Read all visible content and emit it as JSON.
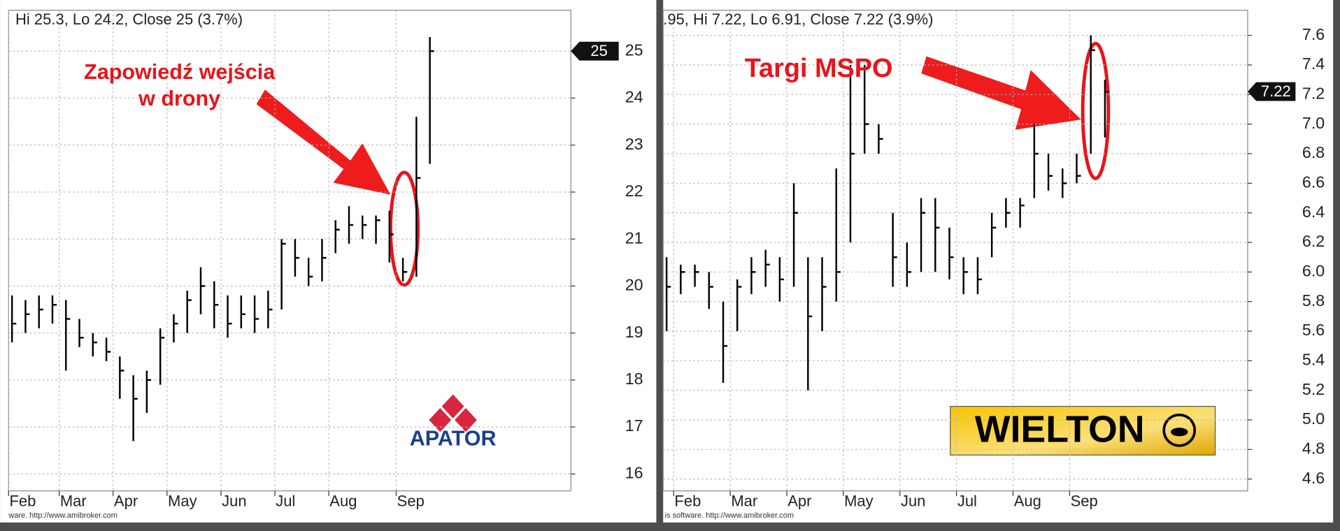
{
  "chart_data": [
    {
      "type": "ohlc",
      "header": "Hi 25.3, Lo 24.2, Close 25 (3.7%)",
      "footer": "ware. http://www.amibroker.com",
      "annotation": [
        "Zapowiedź wejścia",
        "w drony"
      ],
      "logo": "APATOR",
      "ylim": [
        15.64,
        25.87
      ],
      "yticks": [
        16,
        17,
        18,
        19,
        20,
        21,
        22,
        23,
        24,
        25
      ],
      "months": [
        {
          "name": "Feb",
          "close": [
            19.2,
            19.4,
            19.5,
            19.6
          ],
          "high": [
            19.8,
            19.7,
            19.8,
            19.8
          ],
          "low": [
            18.8,
            19.0,
            19.1,
            19.2
          ]
        },
        {
          "name": "Mar",
          "close": [
            19.3,
            18.9,
            18.8,
            18.6
          ],
          "high": [
            19.7,
            19.3,
            19.0,
            18.9
          ],
          "low": [
            18.2,
            18.7,
            18.5,
            18.4
          ]
        },
        {
          "name": "Apr",
          "close": [
            18.2,
            17.6,
            18.0,
            18.9
          ],
          "high": [
            18.5,
            18.1,
            18.2,
            19.1
          ],
          "low": [
            17.6,
            16.7,
            17.3,
            17.9
          ]
        },
        {
          "name": "May",
          "close": [
            19.2,
            19.7,
            20.0,
            19.6
          ],
          "high": [
            19.4,
            19.9,
            20.4,
            20.1
          ],
          "low": [
            18.8,
            19.0,
            19.4,
            19.1
          ]
        },
        {
          "name": "Jun",
          "close": [
            19.2,
            19.4,
            19.3,
            19.5
          ],
          "high": [
            19.8,
            19.8,
            19.8,
            19.9
          ],
          "low": [
            18.9,
            19.1,
            19.0,
            19.1
          ]
        },
        {
          "name": "Jul",
          "close": [
            20.9,
            20.6,
            20.2,
            20.6
          ],
          "high": [
            21.0,
            21.0,
            20.6,
            21.0
          ],
          "low": [
            19.5,
            20.2,
            20.0,
            20.1
          ]
        },
        {
          "name": "Aug",
          "close": [
            21.2,
            21.3,
            21.3,
            21.4,
            21.1
          ],
          "high": [
            21.4,
            21.7,
            21.5,
            21.5,
            21.6
          ],
          "low": [
            20.7,
            20.9,
            21.0,
            20.9,
            20.5
          ]
        },
        {
          "name": "Sep",
          "close": [
            20.3,
            22.3,
            25
          ],
          "high": [
            20.6,
            23.6,
            25.3
          ],
          "low": [
            20.1,
            20.2,
            22.6
          ]
        }
      ]
    },
    {
      "type": "ohlc",
      "header": ".95, Hi 7.22, Lo 6.91, Close 7.22 (3.9%)",
      "footer": "is software. http://www.amibroker.com",
      "annotation": [
        "Targi MSPO"
      ],
      "logo": "WIELTON",
      "ylim": [
        4.52,
        7.77
      ],
      "yticks": [
        4.6,
        4.8,
        {
          "value": 5,
          "label": "5.0"
        },
        5.2,
        5.4,
        5.6,
        5.8,
        {
          "value": 6,
          "label": "6.0"
        },
        6.2,
        6.4,
        6.6,
        6.8,
        {
          "value": 7,
          "label": "7.0"
        },
        7.2,
        7.4,
        7.6
      ],
      "months": [
        {
          "name": null,
          "close": [
            5.9
          ],
          "high": [
            6.1
          ],
          "low": [
            5.6
          ]
        },
        {
          "name": "Feb",
          "close": [
            6.0,
            6.0,
            5.9,
            5.5
          ],
          "high": [
            6.05,
            6.05,
            6.0,
            5.8
          ],
          "low": [
            5.85,
            5.9,
            5.75,
            5.25
          ]
        },
        {
          "name": "Mar",
          "close": [
            5.9,
            6.0,
            6.05,
            5.95
          ],
          "high": [
            5.95,
            6.1,
            6.15,
            6.1
          ],
          "low": [
            5.6,
            5.85,
            5.9,
            5.8
          ]
        },
        {
          "name": "Apr",
          "close": [
            6.4,
            5.7,
            5.9,
            6.0
          ],
          "high": [
            6.6,
            6.1,
            6.1,
            6.7
          ],
          "low": [
            5.9,
            5.2,
            5.6,
            5.8
          ]
        },
        {
          "name": "May",
          "close": [
            6.8,
            7.0,
            6.9,
            6.1
          ],
          "high": [
            7.4,
            7.4,
            7.0,
            6.4
          ],
          "low": [
            6.2,
            6.8,
            6.8,
            5.9
          ]
        },
        {
          "name": "Jun",
          "close": [
            6.0,
            6.4,
            6.3,
            6.1
          ],
          "high": [
            6.2,
            6.5,
            6.5,
            6.3
          ],
          "low": [
            5.9,
            6.0,
            6.0,
            5.95
          ]
        },
        {
          "name": "Jul",
          "close": [
            6.0,
            5.95,
            6.3,
            6.4
          ],
          "high": [
            6.1,
            6.1,
            6.4,
            6.5
          ],
          "low": [
            5.85,
            5.85,
            6.1,
            6.3
          ]
        },
        {
          "name": "Aug",
          "close": [
            6.45,
            6.8,
            6.65,
            6.6
          ],
          "high": [
            6.5,
            7.0,
            6.8,
            6.7
          ],
          "low": [
            6.3,
            6.5,
            6.55,
            6.5
          ]
        },
        {
          "name": "Sep",
          "close": [
            6.65,
            7.5,
            7.22
          ],
          "high": [
            6.8,
            7.6,
            7.3
          ],
          "low": [
            6.6,
            6.8,
            6.91
          ]
        }
      ]
    }
  ]
}
